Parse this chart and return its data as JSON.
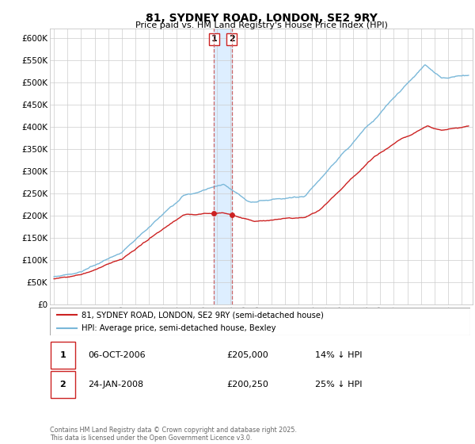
{
  "title": "81, SYDNEY ROAD, LONDON, SE2 9RY",
  "subtitle": "Price paid vs. HM Land Registry's House Price Index (HPI)",
  "hpi_color": "#7ab8d9",
  "price_color": "#cc2222",
  "dashed_color": "#cc6666",
  "band_color": "#ddeeff",
  "background_color": "#ffffff",
  "grid_color": "#cccccc",
  "ylim": [
    0,
    620000
  ],
  "yticks": [
    0,
    50000,
    100000,
    150000,
    200000,
    250000,
    300000,
    350000,
    400000,
    450000,
    500000,
    550000,
    600000
  ],
  "legend1_label": "81, SYDNEY ROAD, LONDON, SE2 9RY (semi-detached house)",
  "legend2_label": "HPI: Average price, semi-detached house, Bexley",
  "transaction1_num": "1",
  "transaction1_date": "06-OCT-2006",
  "transaction1_price": "£205,000",
  "transaction1_hpi": "14% ↓ HPI",
  "transaction2_num": "2",
  "transaction2_date": "24-JAN-2008",
  "transaction2_price": "£200,250",
  "transaction2_hpi": "25% ↓ HPI",
  "footer": "Contains HM Land Registry data © Crown copyright and database right 2025.\nThis data is licensed under the Open Government Licence v3.0.",
  "marker1_x": 2006.77,
  "marker1_y": 205000,
  "marker2_x": 2008.07,
  "marker2_y": 200250,
  "xmin": 1994.7,
  "xmax": 2025.8
}
